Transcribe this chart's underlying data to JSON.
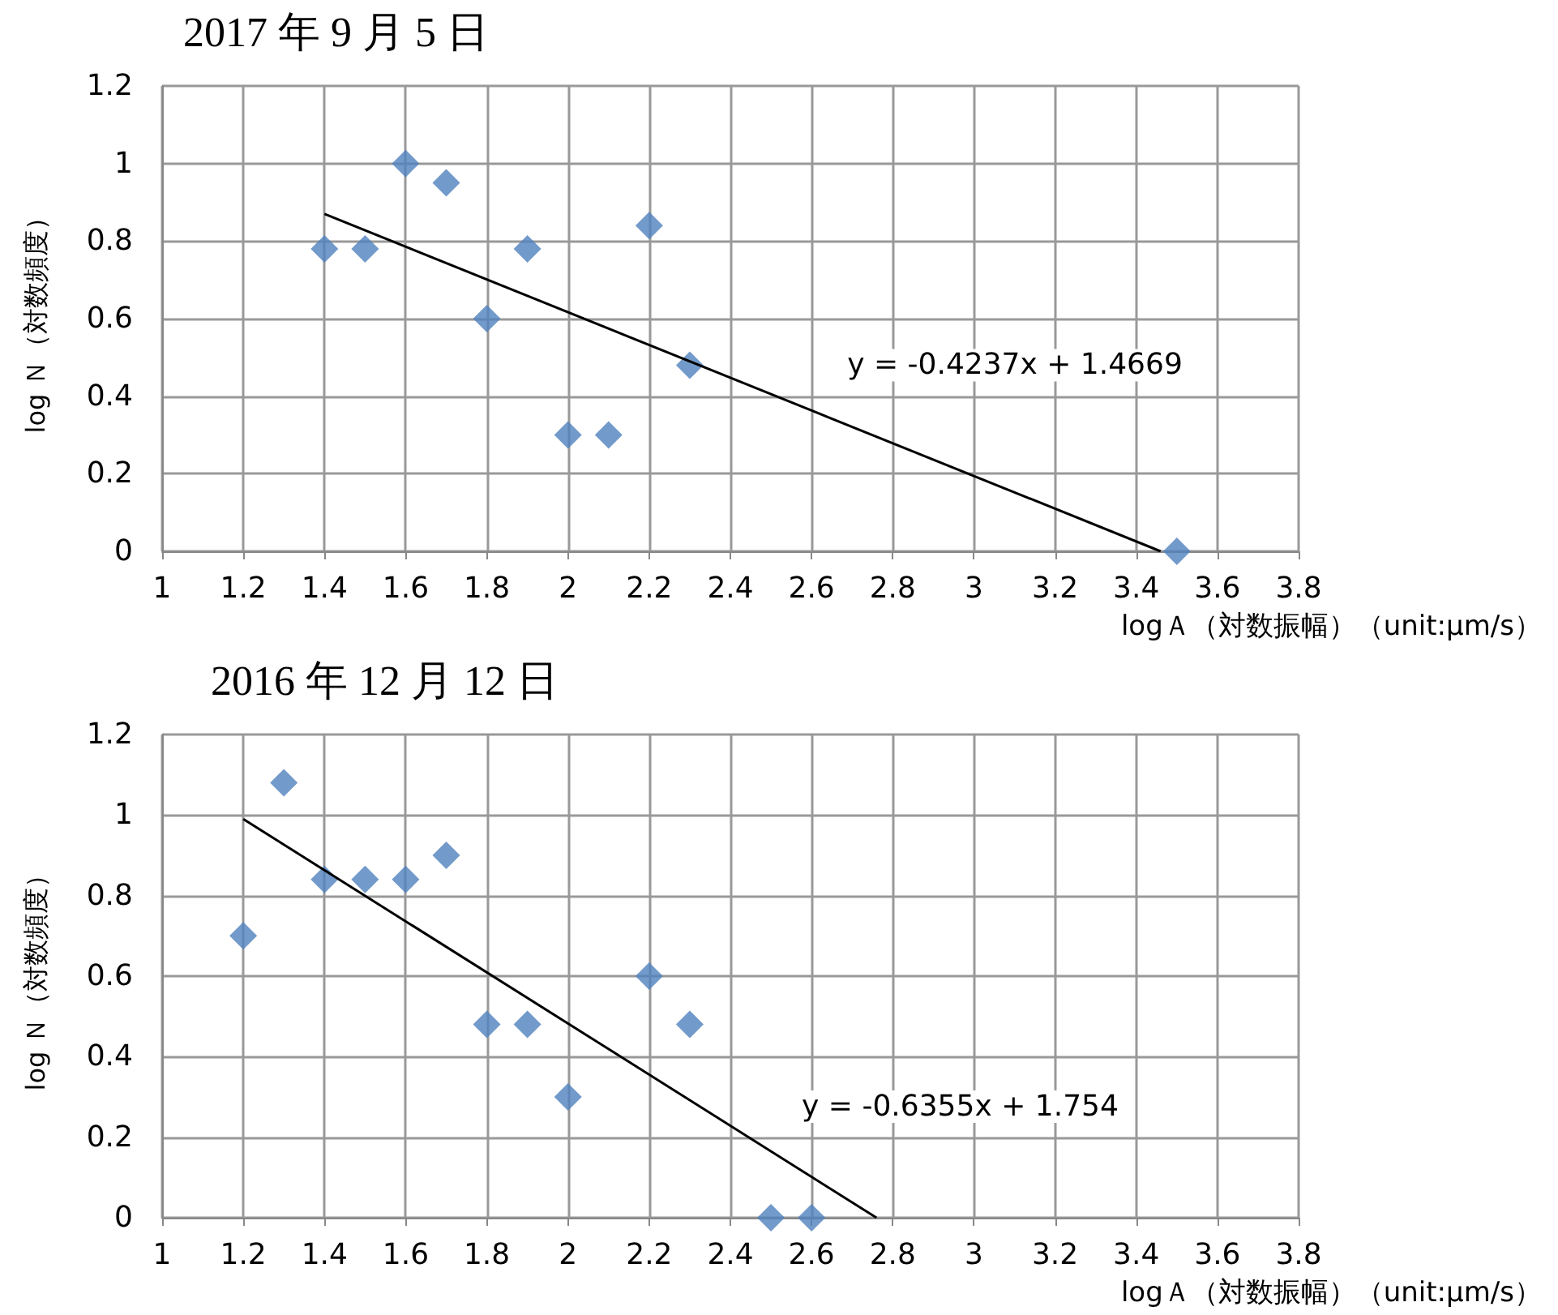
{
  "chart_data": [
    {
      "type": "scatter",
      "title": "2017 年 9 月 5 日",
      "xlabel": "logＡ（対数振幅）（unit:μm/s）",
      "ylabel": "log Ｎ（対数頻度）",
      "xlim": [
        1,
        3.8
      ],
      "xticks": [
        1,
        1.2,
        1.4,
        1.6,
        1.8,
        2,
        2.2,
        2.4,
        2.6,
        2.8,
        3,
        3.2,
        3.4,
        3.6,
        3.8
      ],
      "ylim": [
        0,
        1.2
      ],
      "yticks": [
        0,
        0.2,
        0.4,
        0.6,
        0.8,
        1,
        1.2
      ],
      "grid": true,
      "marker": "diamond",
      "series": [
        {
          "color": "#4f81bd",
          "x": [
            1.4,
            1.5,
            1.6,
            1.7,
            1.8,
            1.9,
            2.0,
            2.1,
            2.2,
            2.3,
            3.5
          ],
          "values": [
            0.78,
            0.78,
            1.0,
            0.95,
            0.6,
            0.78,
            0.3,
            0.3,
            0.84,
            0.48,
            0
          ]
        },
        {
          "type": "line",
          "color": "#000000",
          "marker": "none",
          "line_style": "solid",
          "x": [
            1.4,
            3.46
          ],
          "values": [
            0.87,
            0
          ]
        }
      ],
      "annotations": [
        "y = -0.4237x + 1.4669"
      ]
    },
    {
      "type": "scatter",
      "title": "2016 年 12 月 12 日",
      "xlabel": "logＡ（対数振幅）（unit:μm/s）",
      "ylabel": "log Ｎ（対数頻度）",
      "xlim": [
        1,
        3.8
      ],
      "xticks": [
        1,
        1.2,
        1.4,
        1.6,
        1.8,
        2,
        2.2,
        2.4,
        2.6,
        2.8,
        3,
        3.2,
        3.4,
        3.6,
        3.8
      ],
      "ylim": [
        0,
        1.2
      ],
      "yticks": [
        0,
        0.2,
        0.4,
        0.6,
        0.8,
        1,
        1.2
      ],
      "grid": true,
      "marker": "diamond",
      "series": [
        {
          "color": "#4f81bd",
          "x": [
            1.2,
            1.3,
            1.4,
            1.5,
            1.6,
            1.7,
            1.8,
            1.9,
            2.0,
            2.2,
            2.3,
            2.5,
            2.6
          ],
          "values": [
            0.7,
            1.08,
            0.84,
            0.84,
            0.84,
            0.9,
            0.48,
            0.48,
            0.3,
            0.6,
            0.48,
            0,
            0
          ]
        },
        {
          "type": "line",
          "color": "#000000",
          "marker": "none",
          "line_style": "solid",
          "x": [
            1.2,
            2.76
          ],
          "values": [
            0.99,
            0
          ]
        }
      ],
      "annotations": [
        "y = -0.6355x + 1.754"
      ]
    }
  ]
}
